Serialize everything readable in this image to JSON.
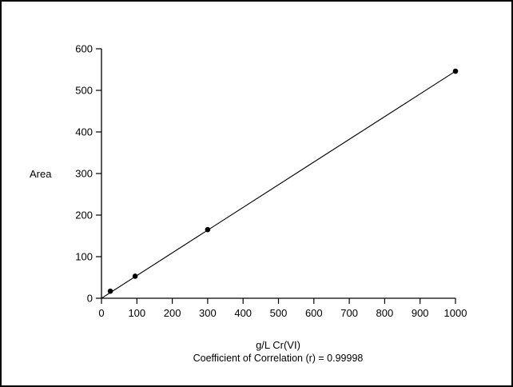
{
  "chart_data": {
    "type": "scatter",
    "xlabel": "g/L Cr(VI)",
    "ylabel": "Area",
    "annotation": "Coefficient of Correlation (r) = 0.99998",
    "xlim": [
      0,
      1000
    ],
    "ylim": [
      0,
      600
    ],
    "xticks": [
      0,
      100,
      200,
      300,
      400,
      500,
      600,
      700,
      800,
      900,
      1000
    ],
    "yticks": [
      0,
      100,
      200,
      300,
      400,
      500,
      600
    ],
    "xtick_labels": [
      "0",
      "100",
      "200",
      "300",
      "400",
      "500",
      "600",
      "700",
      "800",
      "900",
      "1000"
    ],
    "ytick_labels": [
      "0",
      "100",
      "200",
      "300",
      "400",
      "500",
      "600"
    ],
    "grid": false,
    "points": [
      {
        "x": 25,
        "y": 17
      },
      {
        "x": 95,
        "y": 53
      },
      {
        "x": 300,
        "y": 165
      },
      {
        "x": 1000,
        "y": 546
      }
    ],
    "fit_line": {
      "x": [
        0,
        1000
      ],
      "y": [
        0,
        546
      ]
    },
    "colors": {
      "axis": "#000000",
      "points": "#000000",
      "line": "#000000"
    }
  }
}
